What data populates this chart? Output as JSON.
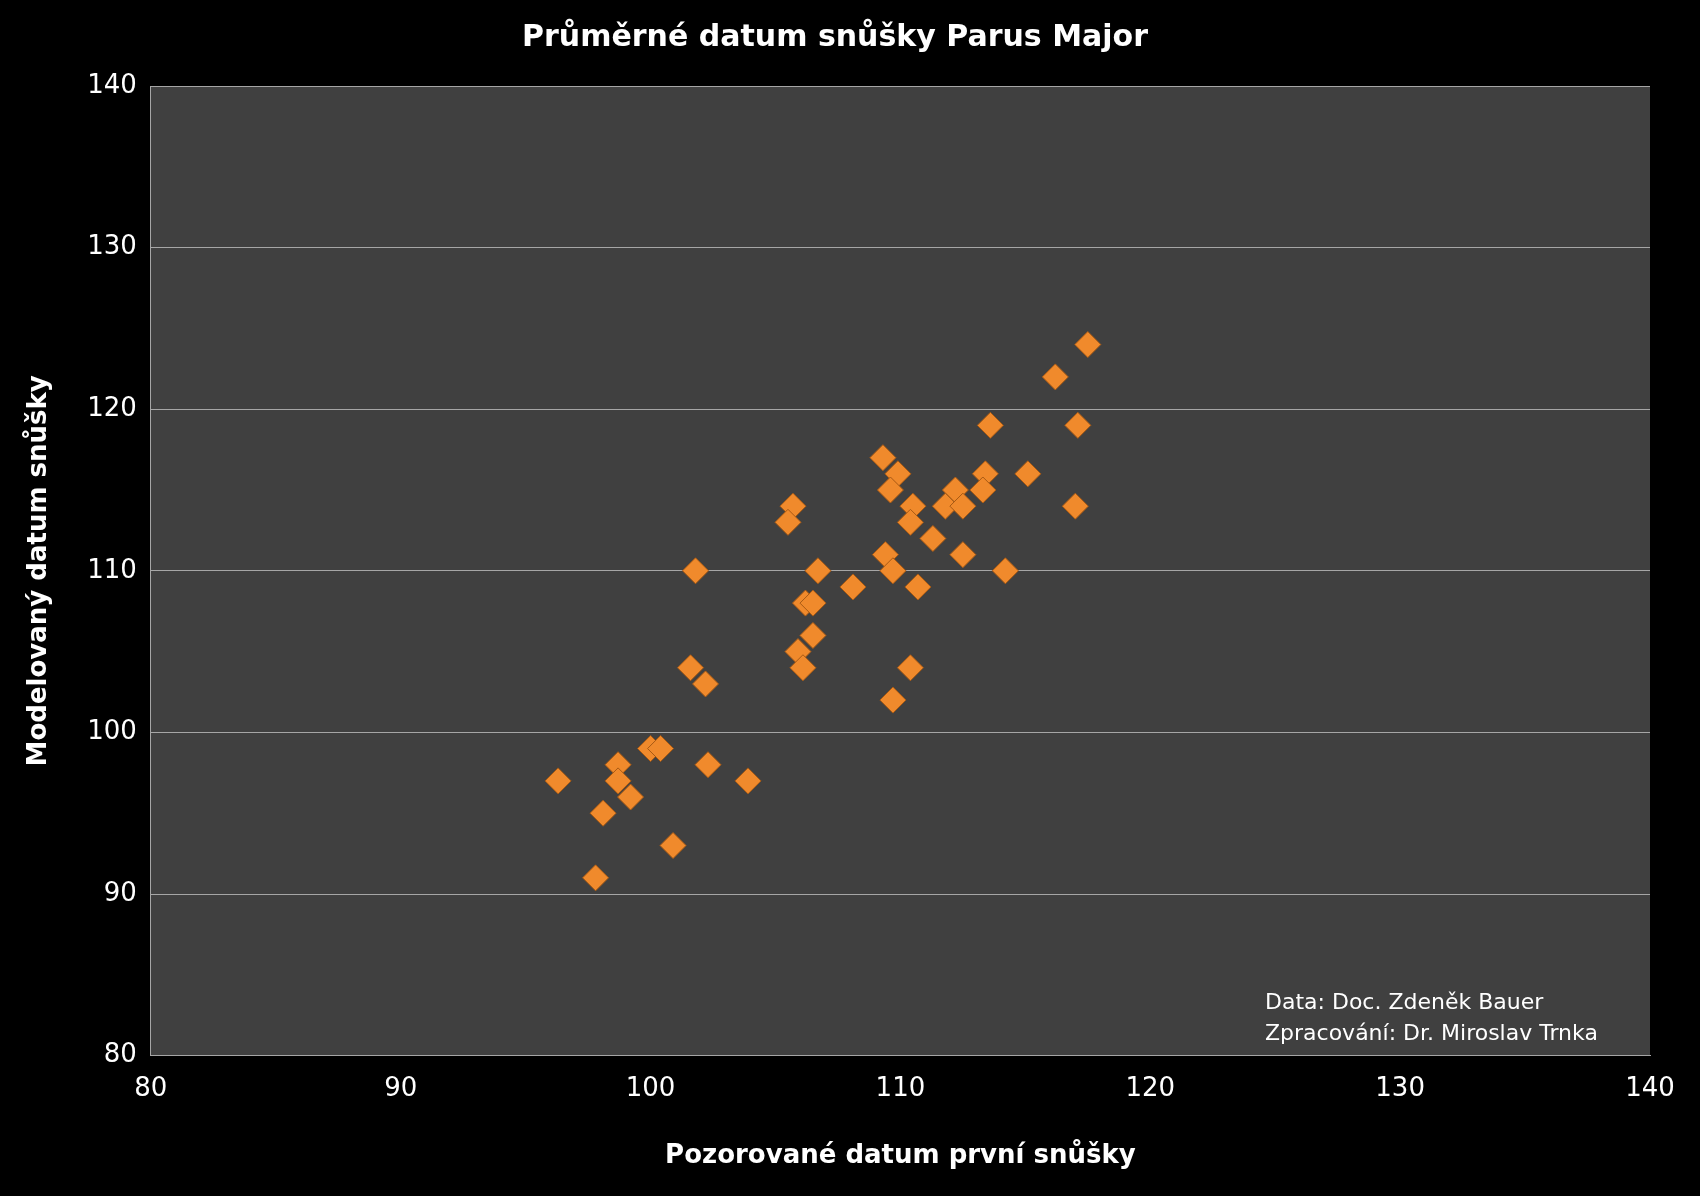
{
  "chart_data": {
    "type": "scatter",
    "title": "Průměrné datum snůšky Parus Major",
    "xlabel": "Pozorované datum první snůšky",
    "ylabel": "Modelovaný datum snůšky",
    "x": [
      117.5,
      116.2,
      113.6,
      117.1,
      109.3,
      109.9,
      113.4,
      115.1,
      109.6,
      112.2,
      113.3,
      105.7,
      110.5,
      111.8,
      112.5,
      117.0,
      105.5,
      110.4,
      111.3,
      109.4,
      112.5,
      101.8,
      106.7,
      109.7,
      114.2,
      108.1,
      110.7,
      106.2,
      106.5,
      106.5,
      105.9,
      101.6,
      106.1,
      110.4,
      102.2,
      109.7,
      100.0,
      100.4,
      98.7,
      102.3,
      96.3,
      98.7,
      103.9,
      99.2,
      98.1,
      100.9,
      97.8
    ],
    "values": [
      124,
      122,
      119,
      119,
      117,
      116,
      116,
      116,
      115,
      115,
      115,
      114,
      114,
      114,
      114,
      114,
      113,
      113,
      112,
      111,
      111,
      110,
      110,
      110,
      110,
      109,
      109,
      108,
      108,
      106,
      105,
      104,
      104,
      104,
      103,
      102,
      99,
      99,
      98,
      98,
      97,
      97,
      97,
      96,
      95,
      93,
      91
    ],
    "color": "#f08a2c",
    "marker": "diamond",
    "xlim": [
      80,
      140
    ],
    "ylim": [
      80,
      140
    ],
    "xticks": [
      80,
      90,
      100,
      110,
      120,
      130,
      140
    ],
    "yticks": [
      80,
      90,
      100,
      110,
      120,
      130,
      140
    ],
    "grid": "y",
    "legend": false,
    "annotations": [
      "Data: Doc. Zdeněk Bauer",
      "Zpracování: Dr. Miroslav Trnka"
    ]
  }
}
